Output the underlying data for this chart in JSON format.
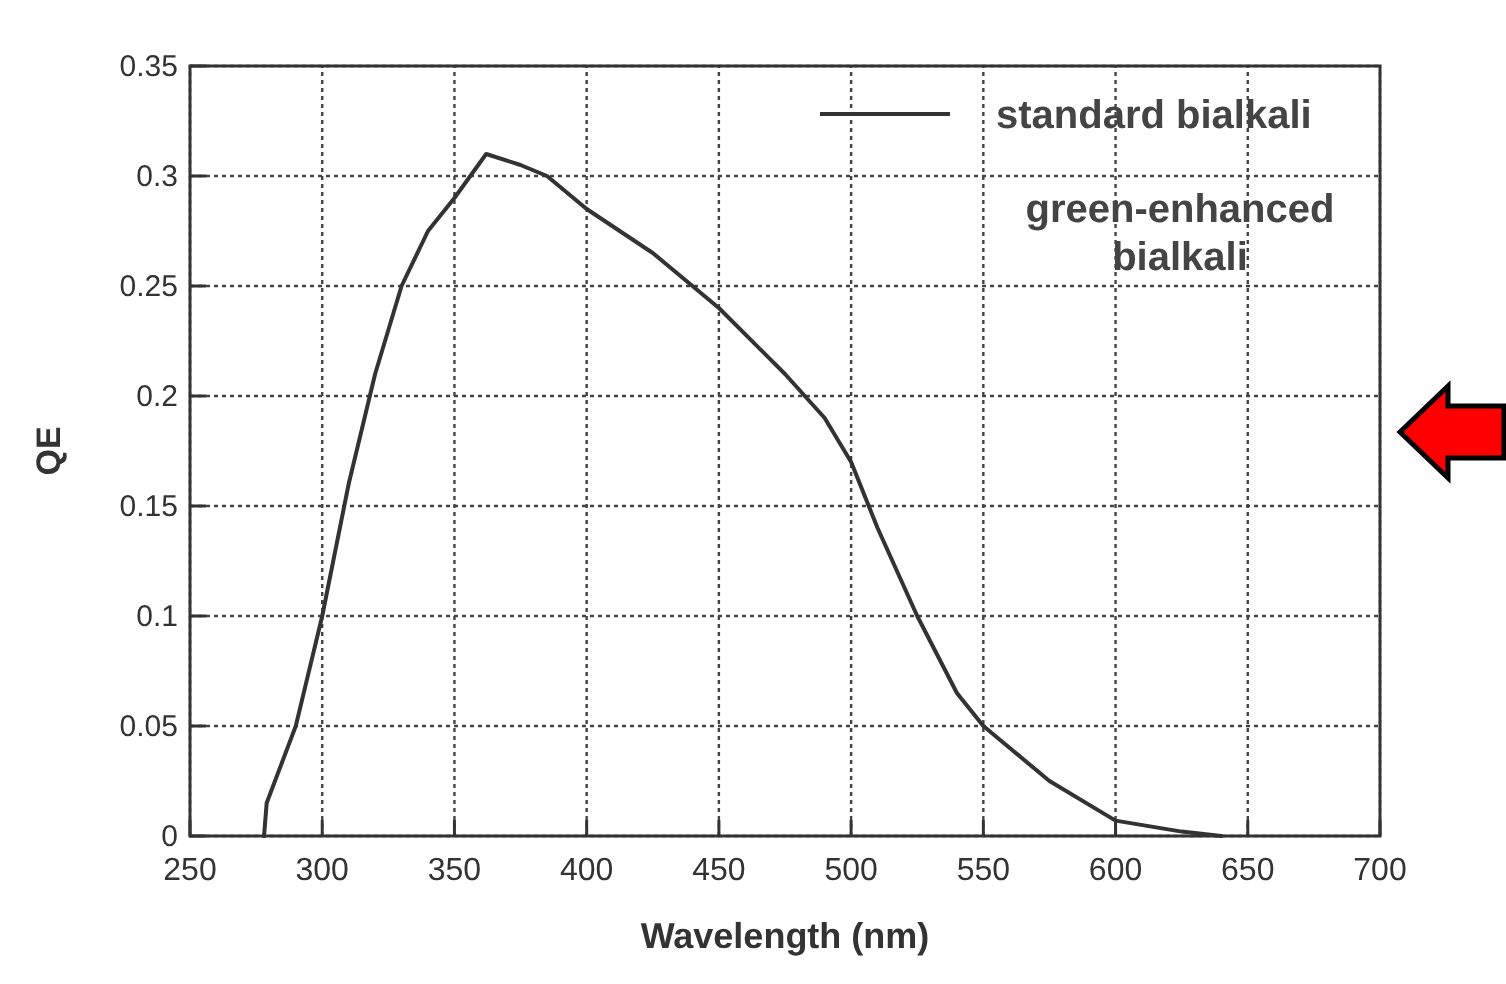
{
  "chart_data": {
    "type": "line",
    "xlabel": "Wavelength (nm)",
    "ylabel": "QE",
    "xlim": [
      250,
      700
    ],
    "xticks": [
      250,
      300,
      350,
      400,
      450,
      500,
      550,
      600,
      650,
      700
    ],
    "ylim": [
      0,
      0.35
    ],
    "yticks": [
      0,
      0.05,
      0.1,
      0.15,
      0.2,
      0.25,
      0.3,
      0.35
    ],
    "grid": true,
    "legend": "top right",
    "line_style": "solid",
    "annotations": [
      "green-enhanced bialkali"
    ],
    "series": [
      {
        "name": "standard bialkali",
        "color": "#333333",
        "x": [
          278,
          279,
          290,
          300,
          310,
          320,
          330,
          340,
          350,
          362,
          375,
          385,
          400,
          425,
          450,
          475,
          490,
          500,
          510,
          525,
          540,
          550,
          575,
          600,
          625,
          640
        ],
        "values": [
          0,
          0.015,
          0.05,
          0.1,
          0.16,
          0.21,
          0.25,
          0.275,
          0.29,
          0.31,
          0.305,
          0.3,
          0.285,
          0.265,
          0.24,
          0.21,
          0.19,
          0.17,
          0.14,
          0.1,
          0.065,
          0.05,
          0.025,
          0.007,
          0.002,
          0
        ]
      }
    ]
  }
}
